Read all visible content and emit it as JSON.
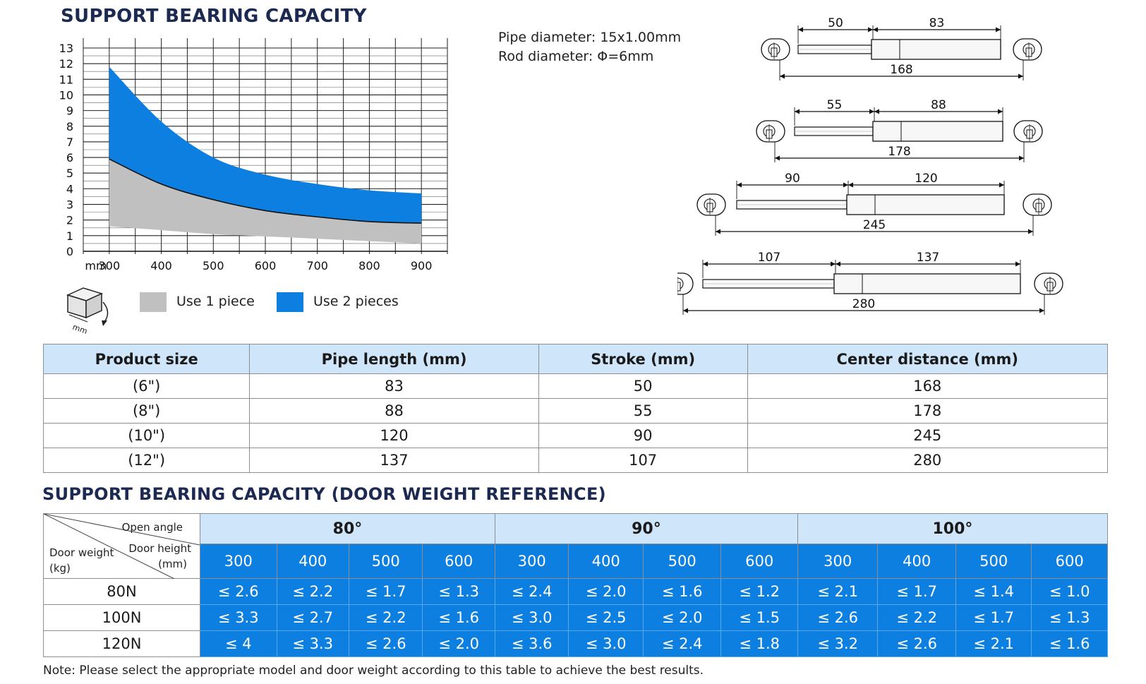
{
  "title1": "SUPPORT BEARING CAPACITY",
  "title2": "SUPPORT BEARING CAPACITY (DOOR WEIGHT REFERENCE)",
  "spec": {
    "pipe": "Pipe diameter: 15x1.00mm",
    "rod": "Rod diameter: Φ=6mm"
  },
  "chart_data": {
    "type": "area",
    "x": [
      300,
      400,
      500,
      600,
      700,
      800,
      900
    ],
    "x_unit_label": "mm",
    "y_ticks": [
      0,
      1,
      2,
      3,
      4,
      5,
      6,
      7,
      8,
      9,
      10,
      11,
      12,
      13
    ],
    "ylim": [
      0,
      13
    ],
    "xlim": [
      250,
      950
    ],
    "grid": true,
    "legend_position": "bottom",
    "series": [
      {
        "name": "Use 1 piece",
        "color": "#c0c0c0",
        "lower": [
          1.6,
          1.35,
          1.1,
          0.95,
          0.8,
          0.65,
          0.5
        ],
        "upper": [
          5.9,
          4.3,
          3.3,
          2.6,
          2.2,
          1.9,
          1.8
        ]
      },
      {
        "name": "Use 2 pieces",
        "color": "#0d7fe0",
        "lower": [
          5.9,
          4.3,
          3.3,
          2.6,
          2.2,
          1.9,
          1.8
        ],
        "upper": [
          11.8,
          8.3,
          6.0,
          4.9,
          4.3,
          3.9,
          3.7
        ]
      }
    ]
  },
  "drawings": [
    {
      "stroke": "50",
      "pipe": "83",
      "center": "168"
    },
    {
      "stroke": "55",
      "pipe": "88",
      "center": "178"
    },
    {
      "stroke": "90",
      "pipe": "120",
      "center": "245"
    },
    {
      "stroke": "107",
      "pipe": "137",
      "center": "280"
    }
  ],
  "table1": {
    "headers": [
      "Product size",
      "Pipe length (mm)",
      "Stroke (mm)",
      "Center distance (mm)"
    ],
    "rows": [
      [
        "(6\")",
        "83",
        "50",
        "168"
      ],
      [
        "(8\")",
        "88",
        "55",
        "178"
      ],
      [
        "(10\")",
        "120",
        "90",
        "245"
      ],
      [
        "(12\")",
        "137",
        "107",
        "280"
      ]
    ]
  },
  "table2": {
    "corner": {
      "open_angle": "Open angle",
      "door_height": "Door height",
      "door_height_unit": "(mm)",
      "door_weight": "Door weight",
      "door_weight_unit": "(kg)"
    },
    "angles": [
      "80°",
      "90°",
      "100°"
    ],
    "heights": [
      "300",
      "400",
      "500",
      "600",
      "300",
      "400",
      "500",
      "600",
      "300",
      "400",
      "500",
      "600"
    ],
    "rows": [
      {
        "label": "80N",
        "values": [
          "≤ 2.6",
          "≤ 2.2",
          "≤ 1.7",
          "≤ 1.3",
          "≤ 2.4",
          "≤ 2.0",
          "≤ 1.6",
          "≤ 1.2",
          "≤ 2.1",
          "≤ 1.7",
          "≤ 1.4",
          "≤ 1.0"
        ]
      },
      {
        "label": "100N",
        "values": [
          "≤ 3.3",
          "≤ 2.7",
          "≤ 2.2",
          "≤ 1.6",
          "≤ 3.0",
          "≤ 2.5",
          "≤ 2.0",
          "≤ 1.5",
          "≤ 2.6",
          "≤ 2.2",
          "≤ 1.7",
          "≤ 1.3"
        ]
      },
      {
        "label": "120N",
        "values": [
          "≤ 4",
          "≤ 3.3",
          "≤ 2.6",
          "≤ 2.0",
          "≤ 3.6",
          "≤ 3.0",
          "≤ 2.4",
          "≤ 1.8",
          "≤ 3.2",
          "≤ 2.6",
          "≤ 2.1",
          "≤ 1.6"
        ]
      }
    ]
  },
  "note": "Note: Please select the appropriate model and door weight according to this table to achieve the best results."
}
